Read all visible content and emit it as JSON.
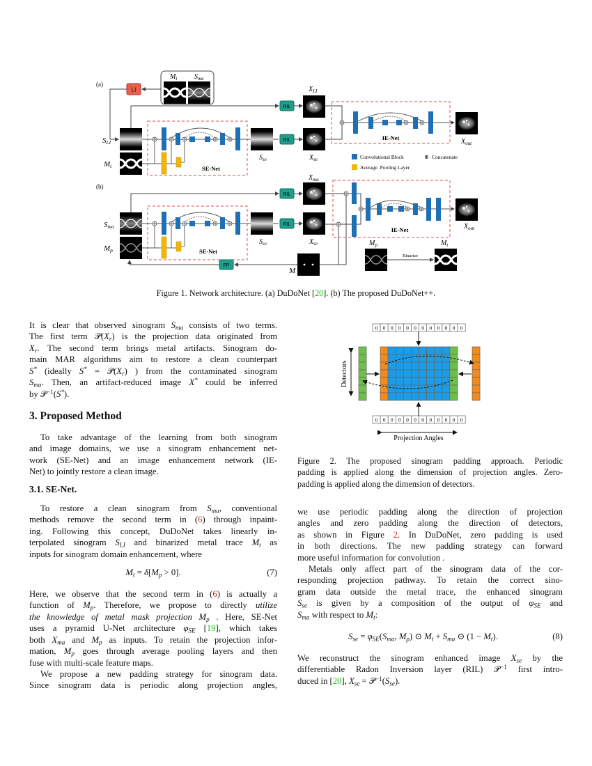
{
  "figure1": {
    "panel_a": "(a)",
    "panel_b": "(b)",
    "li": "LI",
    "ril": "RIL",
    "fp": "FP",
    "se_net": "SE-Net",
    "ie_net": "IE-Net",
    "binarize": "Binarize",
    "legend": {
      "conv": "Convolutional Block",
      "pool": "Average  Pooling Layer",
      "concat_symbol": "⊕",
      "concat": "Concatenate"
    },
    "labels": {
      "M": "M",
      "S": "S",
      "X": "X",
      "t": "t",
      "ma": "ma",
      "LI": "LI",
      "se": "se",
      "out": "out",
      "p": "p"
    },
    "colors": {
      "conv_block": "#1f6fb5",
      "pool_layer": "#f2b705",
      "li_box": "#e8604c",
      "ril_box": "#1f9e8c",
      "dashed_box": "#e8464a"
    },
    "caption": [
      "Figure 1. Network architecture. (a) DuDoNet [{g:20}]. (b) The proposed DuDoNet++."
    ]
  },
  "figure2": {
    "zero": "0",
    "detectors": "Detectors",
    "projection_angles": "Projection Angles",
    "colors": {
      "data": "#1a9ce8",
      "periodic_a": "#f28a1c",
      "periodic_b": "#6cc04a"
    },
    "caption": [
      "Figure 2. The proposed sinogram padding approach. Periodic",
      "padding is applied along the dimension of projection angles. Zero-",
      "padding is applied along the dimension of detectors."
    ]
  },
  "left": {
    "p0": [
      "It is clear that observed sinogram $S_{ma}$ consists of two terms.",
      "The first term 𝒫($X_r$) is the projection data originated from",
      "$X_r$. The second term brings metal artifacts. Sinogram do-",
      "main MAR algorithms aim to restore a clean counterpart",
      "$S^*$ (ideally $S^*$ = 𝒫($X_r$) ) from the contaminated sinogram",
      "$S_{ma}$. Then, an artifact-reduced image $X^*$ could be inferred",
      "by 𝒫$^{−1}$($S^*$)."
    ],
    "heading": "3. Proposed Method",
    "p1": [
      "To take advantage of the learning from both sinogram",
      "and image domains, we use a sinogram enhancement net-",
      "work (SE-Net) and an image enhancement network (IE-",
      "Net) to jointly restore a clean image."
    ],
    "subheading": "3.1. SE-Net.",
    "p2": [
      "To restore a clean sinogram from $S_{ma}$, conventional",
      "methods remove the second term in ({r:6}) through inpaint-",
      "ing.  Following this concept, DuDoNet takes linearly in-",
      "terpolated sinogram $S_{LI}$ and binarized metal trace $M_t$ as",
      "inputs for sinogram domain enhancement, where"
    ],
    "eq7": "$M_t$ = $δ$[$M_p$ > 0].",
    "eq7_num": "(7)",
    "p3": [
      "Here, we observe that the second term in ({r:6}) is actually a",
      "function of $M_p$.  Therefore, we propose to directly *utilize*",
      "*the knowledge of metal mask projection* $M_p$ . Here, SE-Net",
      "uses a pyramid U-Net architecture $φ_{SE}$ [{g:19}], which takes",
      "both $X_{ma}$ and $M_p$ as inputs. To retain the projection infor-",
      "mation, $M_p$ goes through average pooling layers and then",
      "fuse with multi-scale feature maps."
    ],
    "p4": [
      "We propose a new padding strategy for sinogram data.",
      "Since sinogram data is periodic along projection angles,"
    ]
  },
  "right": {
    "p5": [
      "we use periodic padding along the direction of projection",
      "angles and zero padding along the direction of detectors,",
      "as shown in Figure {r:2}.  In DuDoNet, zero padding is used",
      "in both directions. The new padding strategy can forward",
      "more useful information for convolution ."
    ],
    "p6": [
      "Metals only affect part of the sinogram data of the cor-",
      "responding projection pathway. To retain the correct sino-",
      "gram data outside the metal trace, the enhanced sinogram",
      "$S_{se}$ is given by a composition of the output of $φ_{SE}$ and",
      "$S_{ma}$ with respect to $M_t$:"
    ],
    "eq8": "$S_{se}$ = $φ_{SE}$($S_{ma}$, $M_p$) ⊙ $M_t$ + $S_{ma}$ ⊙ (1 − $M_t$).",
    "eq8_num": "(8)",
    "p7": [
      "We reconstruct the sinogram enhanced image $X_{se}$ by the",
      "differentiable Radon Inversion layer (RIL) 𝒫$^{−1}$ first intro-",
      "duced in [{g:20}], $X_{se}$ = 𝒫$^{−1}$($S_{se}$)."
    ]
  }
}
